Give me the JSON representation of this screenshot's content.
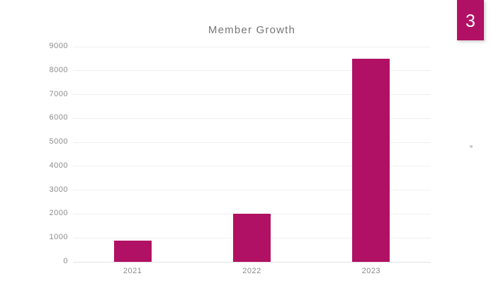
{
  "slide": {
    "number": "3",
    "accent_color": "#b11164",
    "background_color": "#ffffff"
  },
  "chart_data": {
    "type": "bar",
    "title": "Member Growth",
    "categories": [
      "2021",
      "2022",
      "2023"
    ],
    "values": [
      900,
      2000,
      8500
    ],
    "xlabel": "",
    "ylabel": "",
    "ylim": [
      0,
      9000
    ],
    "ytick_step": 1000,
    "grid": true,
    "legend_position": "none",
    "bar_color": "#b11164",
    "title_color": "#767676",
    "axis_text_color": "#8c8c8c",
    "gridline_color": "#f1f1f1",
    "baseline_color": "#e2e2e2"
  }
}
